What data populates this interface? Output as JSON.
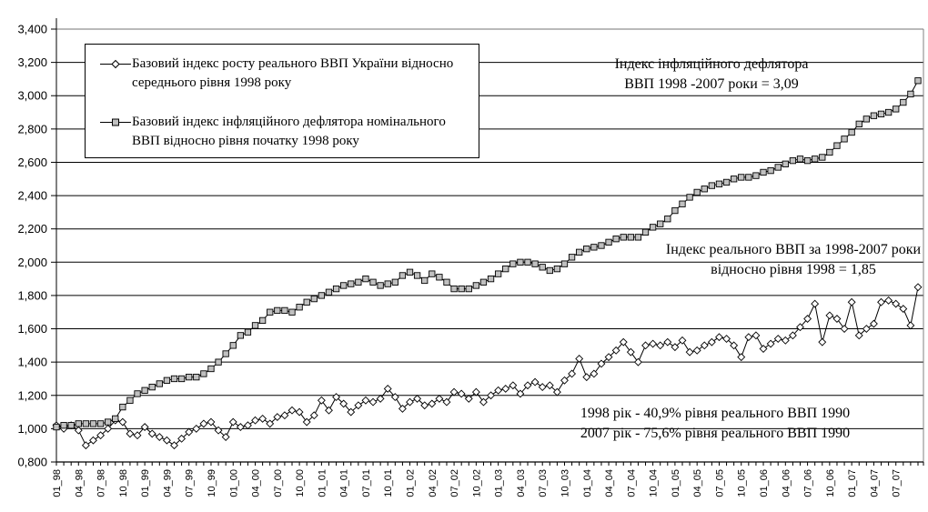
{
  "chart_data": {
    "type": "line",
    "title": "",
    "xlabel": "",
    "ylabel": "",
    "ylim": [
      0.8,
      3.4
    ],
    "y_step": 0.2,
    "grid": "horizontal",
    "legend_position": "top-left-inside",
    "line_color": "#000000",
    "diamond_fill": "#ffffff",
    "square_fill": "#c0c0c0",
    "y_tick_labels": [
      "0,800",
      "1,000",
      "1,200",
      "1,400",
      "1,600",
      "1,800",
      "2,000",
      "2,200",
      "2,400",
      "2,600",
      "2,800",
      "3,000",
      "3,200",
      "3,400"
    ],
    "x_tick_every": 3,
    "x_tick_labels": [
      "01_98",
      "04_98",
      "07_98",
      "10_98",
      "01_99",
      "04_99",
      "07_99",
      "10_99",
      "01_00",
      "04_00",
      "07_00",
      "10_00",
      "01_01",
      "04_01",
      "07_01",
      "10_01",
      "01_02",
      "04_02",
      "07_02",
      "10_02",
      "01_03",
      "04_03",
      "07_03",
      "10_03",
      "01_04",
      "04_04",
      "07_04",
      "10_04",
      "01_05",
      "04_05",
      "07_05",
      "10_05",
      "01_06",
      "04_06",
      "07_06",
      "10_06",
      "01_07",
      "04_07",
      "07_07"
    ],
    "series": [
      {
        "name": "Базовий індекс росту реального ВВП України відносно середнього рівня 1998 року",
        "marker": "diamond",
        "values": [
          1.02,
          1.0,
          1.02,
          0.99,
          0.9,
          0.93,
          0.96,
          1.0,
          1.05,
          1.04,
          0.97,
          0.96,
          1.01,
          0.97,
          0.95,
          0.93,
          0.9,
          0.94,
          0.98,
          1.0,
          1.03,
          1.04,
          0.99,
          0.95,
          1.04,
          1.01,
          1.02,
          1.05,
          1.06,
          1.03,
          1.07,
          1.08,
          1.11,
          1.1,
          1.04,
          1.08,
          1.17,
          1.11,
          1.19,
          1.15,
          1.1,
          1.14,
          1.17,
          1.16,
          1.18,
          1.24,
          1.19,
          1.12,
          1.16,
          1.18,
          1.14,
          1.15,
          1.18,
          1.16,
          1.22,
          1.21,
          1.18,
          1.22,
          1.16,
          1.2,
          1.23,
          1.24,
          1.26,
          1.21,
          1.26,
          1.28,
          1.25,
          1.26,
          1.22,
          1.29,
          1.33,
          1.42,
          1.31,
          1.33,
          1.39,
          1.43,
          1.47,
          1.52,
          1.46,
          1.4,
          1.5,
          1.51,
          1.5,
          1.52,
          1.49,
          1.53,
          1.46,
          1.47,
          1.5,
          1.52,
          1.55,
          1.54,
          1.5,
          1.43,
          1.55,
          1.56,
          1.48,
          1.51,
          1.54,
          1.53,
          1.56,
          1.61,
          1.66,
          1.75,
          1.52,
          1.68,
          1.66,
          1.6,
          1.76,
          1.56,
          1.6,
          1.63,
          1.76,
          1.77,
          1.75,
          1.72,
          1.62,
          1.85
        ]
      },
      {
        "name": "Базовий індекс інфляційного дефлятора номінального ВВП відносно рівня початку 1998 року",
        "marker": "square",
        "values": [
          1.01,
          1.02,
          1.02,
          1.03,
          1.03,
          1.03,
          1.03,
          1.04,
          1.06,
          1.13,
          1.17,
          1.21,
          1.23,
          1.25,
          1.27,
          1.29,
          1.3,
          1.3,
          1.31,
          1.31,
          1.33,
          1.36,
          1.4,
          1.45,
          1.5,
          1.56,
          1.58,
          1.62,
          1.65,
          1.7,
          1.71,
          1.71,
          1.7,
          1.73,
          1.76,
          1.78,
          1.8,
          1.82,
          1.84,
          1.86,
          1.87,
          1.88,
          1.9,
          1.88,
          1.86,
          1.87,
          1.88,
          1.92,
          1.94,
          1.92,
          1.89,
          1.93,
          1.91,
          1.88,
          1.84,
          1.84,
          1.84,
          1.86,
          1.88,
          1.9,
          1.93,
          1.96,
          1.99,
          2.0,
          2.0,
          1.99,
          1.97,
          1.95,
          1.96,
          1.99,
          2.03,
          2.06,
          2.08,
          2.09,
          2.1,
          2.12,
          2.14,
          2.15,
          2.15,
          2.15,
          2.18,
          2.21,
          2.23,
          2.26,
          2.31,
          2.35,
          2.39,
          2.42,
          2.44,
          2.46,
          2.47,
          2.48,
          2.5,
          2.51,
          2.51,
          2.52,
          2.54,
          2.55,
          2.57,
          2.59,
          2.61,
          2.62,
          2.61,
          2.62,
          2.63,
          2.66,
          2.7,
          2.74,
          2.78,
          2.83,
          2.86,
          2.88,
          2.89,
          2.9,
          2.92,
          2.96,
          3.01,
          3.09
        ]
      }
    ],
    "annotations": [
      {
        "line1": "Індекс інфляційного дефлятора",
        "line2": "ВВП 1998 -2007 роки = 3,09"
      },
      {
        "line1": "Індекс реального ВВП за 1998-2007 роки",
        "line2": "відносно рівня 1998 = 1,85"
      },
      {
        "line1": "1998 рік - 40,9% рівня реального ВВП 1990",
        "line2": "2007 рік - 75,6% рівня реального ВВП 1990"
      }
    ]
  }
}
